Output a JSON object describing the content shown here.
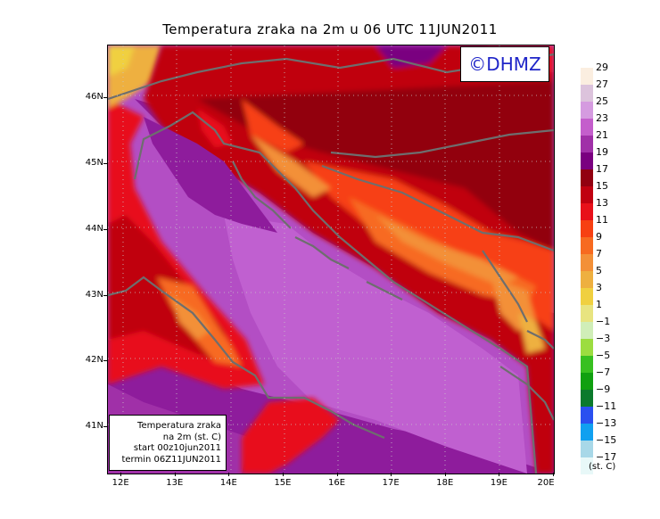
{
  "title": "Temperatura zraka na 2m u 06 UTC 11JUN2011",
  "brand": "©DHMZ",
  "infobox": {
    "line1": "Temperatura zraka",
    "line2": "na 2m (st. C)",
    "line3": "start 00z10jun2011",
    "line4": "termin 06Z11JUN2011"
  },
  "map": {
    "lon_range": [
      11.75,
      20.0
    ],
    "lat_range": [
      40.3,
      46.8
    ],
    "lat_ticks": [
      "46N",
      "45N",
      "44N",
      "43N",
      "42N",
      "41N"
    ],
    "lon_ticks": [
      "12E",
      "13E",
      "14E",
      "15E",
      "16E",
      "17E",
      "18E",
      "19E",
      "20E"
    ],
    "lat_values": [
      46,
      45,
      44,
      43,
      42,
      41
    ],
    "lon_values": [
      12,
      13,
      14,
      15,
      16,
      17,
      18,
      19,
      20
    ],
    "grid": "dotted",
    "sea_color": "#b34ec4",
    "coast_color": "#6e6e6e"
  },
  "legend": {
    "unit": "(st. C)",
    "labels": [
      "29",
      "27",
      "25",
      "23",
      "21",
      "19",
      "17",
      "15",
      "13",
      "11",
      "9",
      "7",
      "5",
      "3",
      "1",
      "−1",
      "−3",
      "−5",
      "−7",
      "−9",
      "−11",
      "−13",
      "−15",
      "−17"
    ],
    "colors": [
      "#fbeee0",
      "#dcc3dc",
      "#d59be0",
      "#c45ecc",
      "#a030a8",
      "#7a0080",
      "#920010",
      "#c00010",
      "#e8101a",
      "#f74012",
      "#f76a20",
      "#f39038",
      "#eeb040",
      "#f0d040",
      "#e8e480",
      "#d0eeb8",
      "#9cdd40",
      "#38c020",
      "#10a010",
      "#0b7a2c",
      "#2a50f0",
      "#10a0f0",
      "#a8d8e8",
      "#e8f8f8"
    ]
  }
}
